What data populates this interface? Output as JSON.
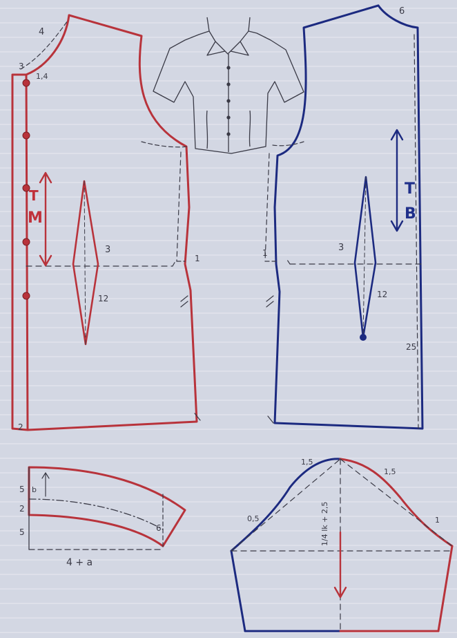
{
  "colors": {
    "paper": "#d3d7e3",
    "rule": "#e8eaf2",
    "red": "#b8333b",
    "blue": "#1c2a80",
    "pencil": "#3a3a46"
  },
  "front": {
    "label_neck": "4",
    "label_top": "3",
    "label_button": "1,4",
    "label_dart_w": "3",
    "label_dart_h": "12",
    "label_side": "1",
    "label_hem": "2",
    "label_t": "T",
    "label_m": "M"
  },
  "back": {
    "label_neck": "6",
    "label_dart_w": "3",
    "label_dart_h": "12",
    "label_side": "1",
    "label_length": "25",
    "label_t": "T",
    "label_b": "B"
  },
  "collar": {
    "label_height": "5",
    "label_b": "b",
    "label_gap": "2",
    "label_depth": "5",
    "label_end": "6",
    "label_width": "4 + a"
  },
  "sleeve": {
    "label_cap_left": "1,5",
    "label_cap_right": "1,5",
    "label_low_left": "0,5",
    "label_low_right": "1",
    "label_height": "1/4 lk + 2,5"
  },
  "icons": [
    "shirt-sketch-icon",
    "button-icon"
  ]
}
